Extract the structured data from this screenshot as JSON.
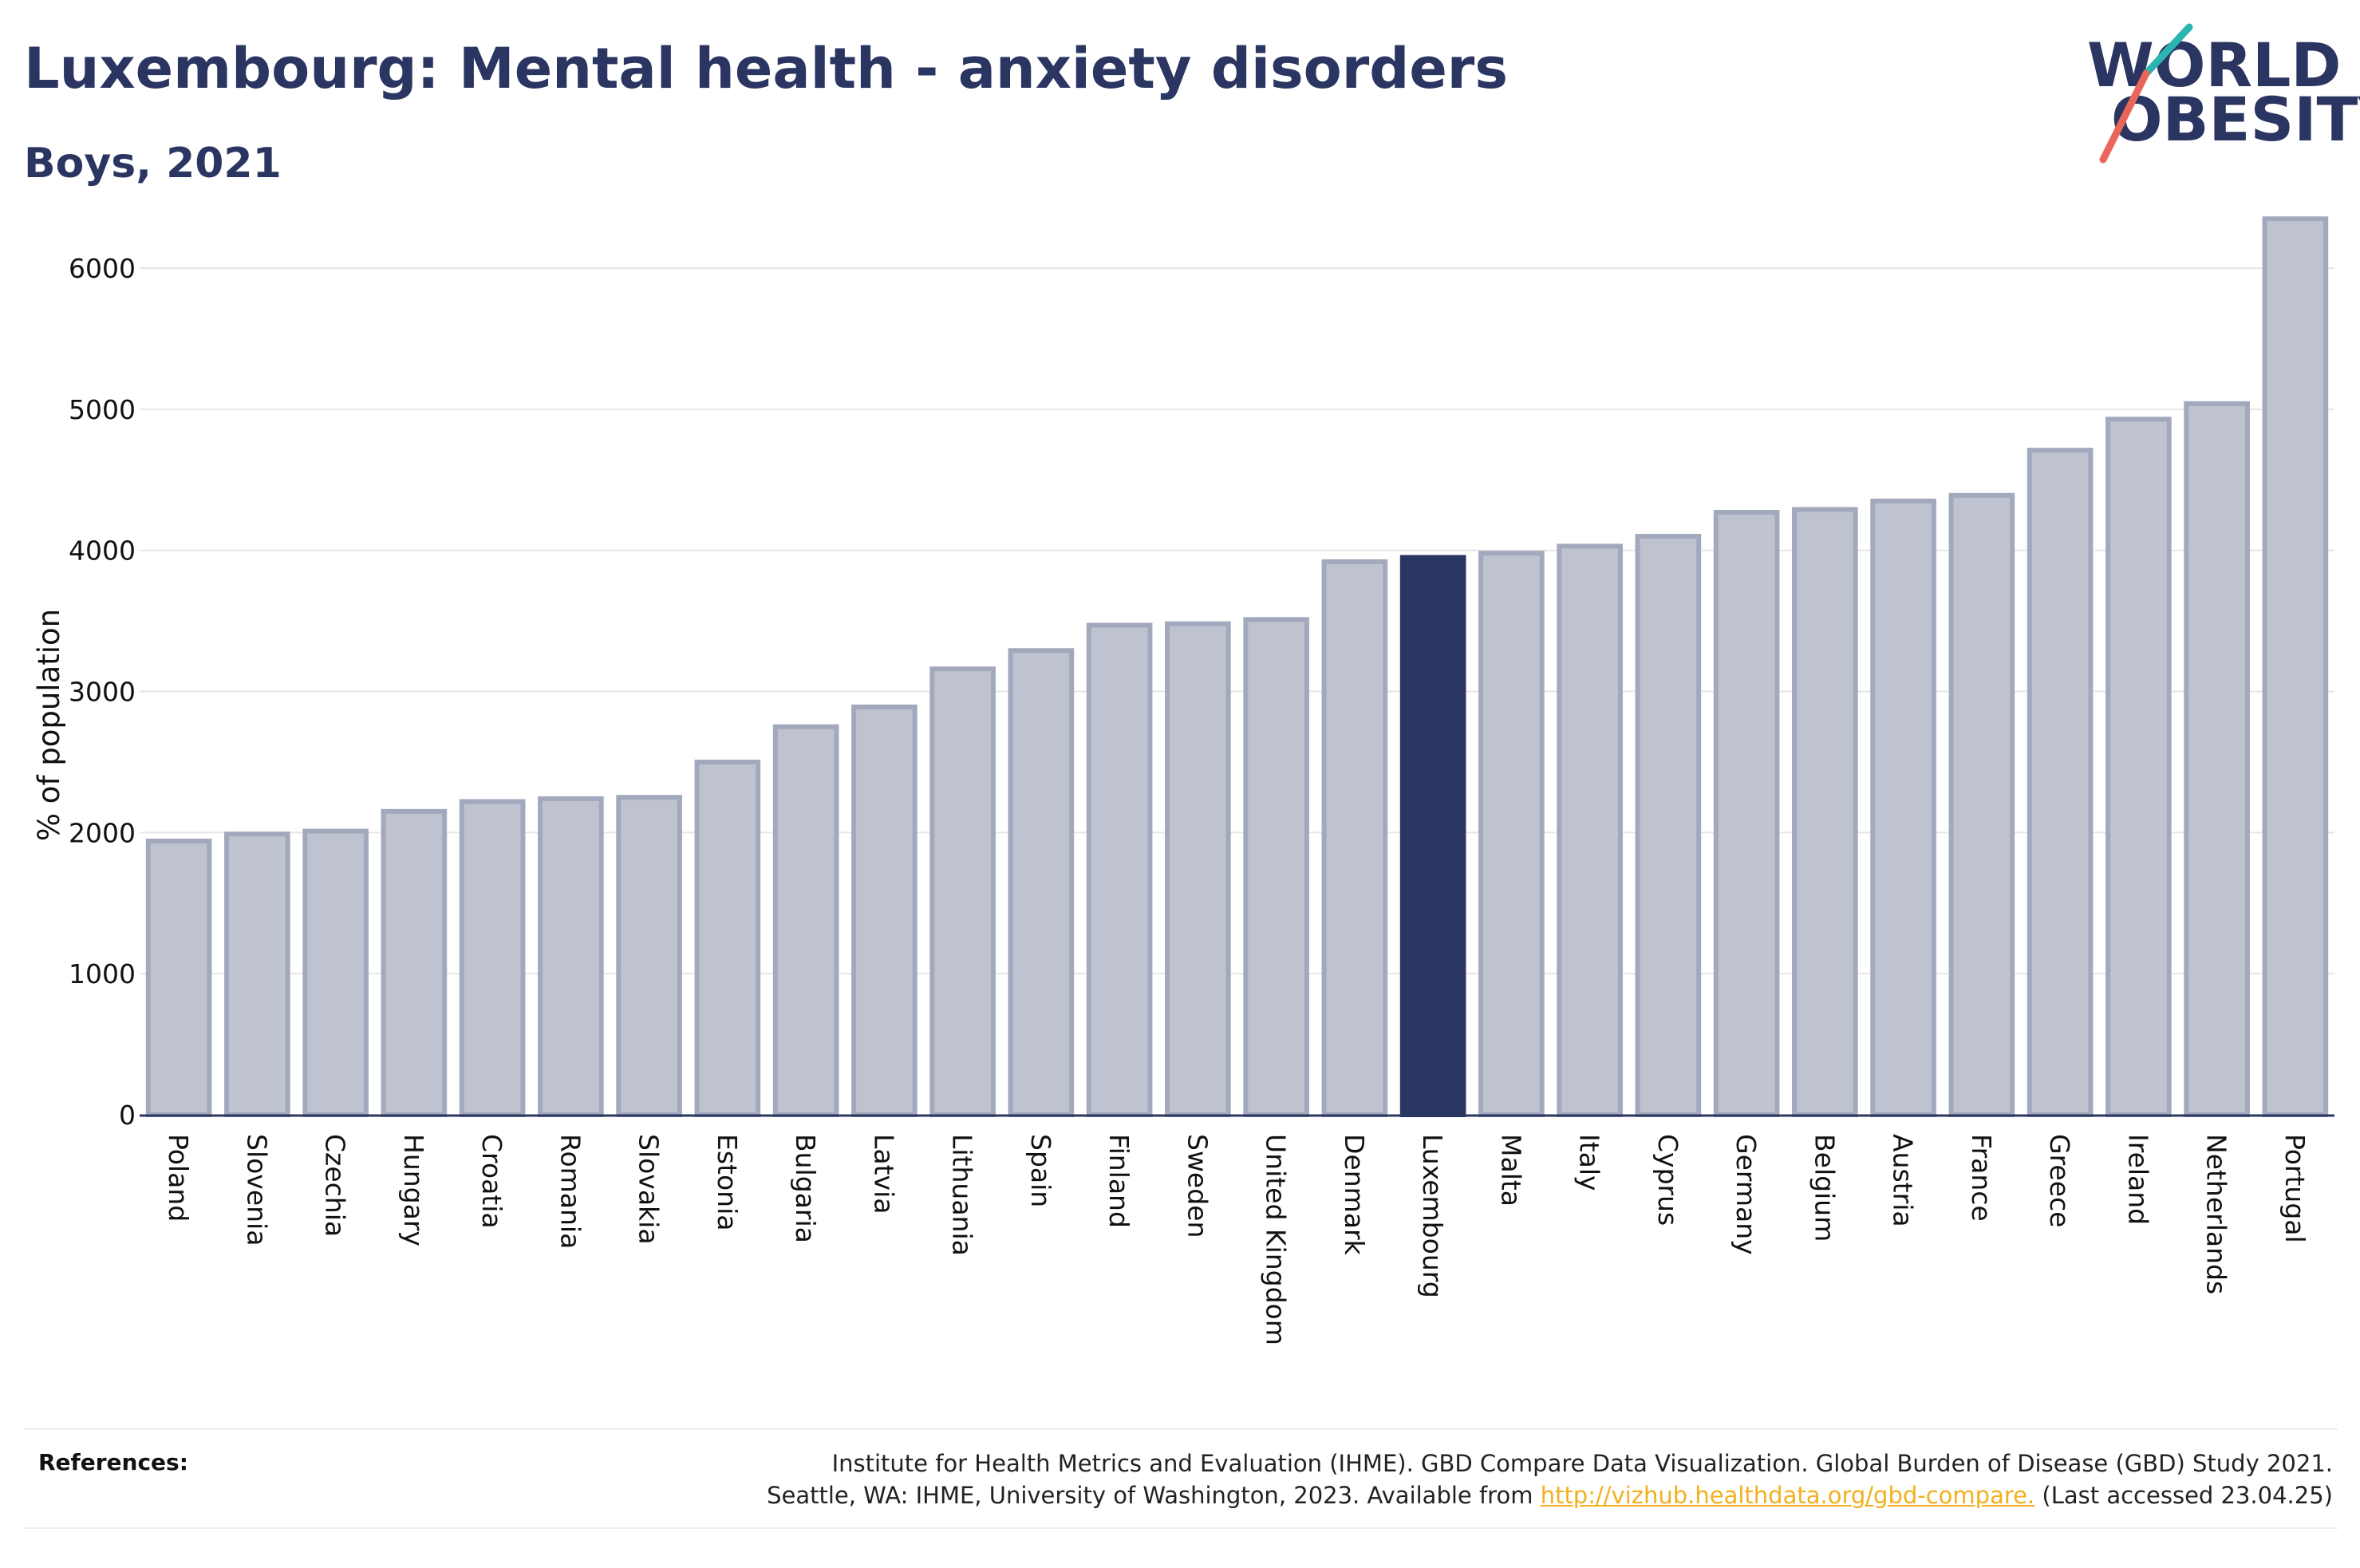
{
  "header": {
    "title": "Luxembourg: Mental health - anxiety disorders",
    "subtitle": "Boys, 2021"
  },
  "logo": {
    "line1": "WORLD",
    "line2": "OBESITY"
  },
  "chart_data": {
    "type": "bar",
    "ylabel": "% of population",
    "xlabel": "",
    "ylim": [
      0,
      6600
    ],
    "yticks": [
      0,
      1000,
      2000,
      3000,
      4000,
      5000,
      6000
    ],
    "grid": true,
    "highlight": "Luxembourg",
    "colors": {
      "bar": "#bfc3cf",
      "bar_edge": "#a3a9bd",
      "highlight": "#2b3561",
      "axis": "#2b3561"
    },
    "categories": [
      "Poland",
      "Slovenia",
      "Czechia",
      "Hungary",
      "Croatia",
      "Romania",
      "Slovakia",
      "Estonia",
      "Bulgaria",
      "Latvia",
      "Lithuania",
      "Spain",
      "Finland",
      "Sweden",
      "United Kingdom",
      "Denmark",
      "Luxembourg",
      "Malta",
      "Italy",
      "Cyprus",
      "Germany",
      "Belgium",
      "Austria",
      "France",
      "Greece",
      "Ireland",
      "Netherlands",
      "Portugal"
    ],
    "values": [
      1940,
      1990,
      2010,
      2150,
      2220,
      2240,
      2250,
      2500,
      2750,
      2890,
      3160,
      3290,
      3470,
      3480,
      3510,
      3920,
      3950,
      3980,
      4030,
      4100,
      4270,
      4290,
      4350,
      4390,
      4710,
      4930,
      5040,
      6350
    ]
  },
  "references": {
    "label": "References:",
    "line1": "Institute for Health Metrics and Evaluation (IHME). GBD Compare Data Visualization. Global Burden of Disease (GBD) Study 2021.",
    "line2_prefix": "Seattle, WA: IHME, University of Washington, 2023. Available from ",
    "link": "http://vizhub.healthdata.org/gbd-compare.",
    "line2_suffix": " (Last accessed 23.04.25)"
  }
}
